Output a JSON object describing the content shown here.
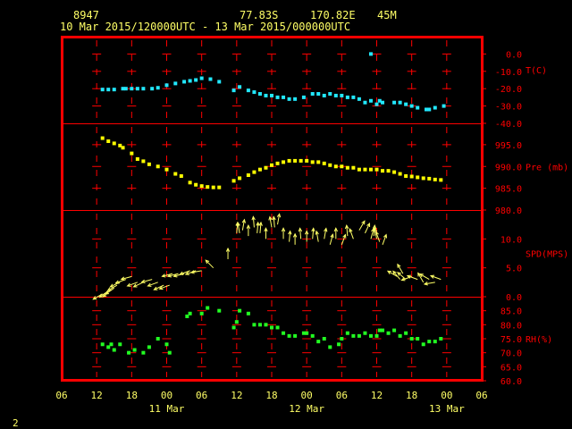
{
  "header": {
    "station_id": "8947",
    "latitude": "77.83S",
    "longitude": "170.82E",
    "elevation": "45M",
    "time_range": "10 Mar 2015/120000UTC - 13 Mar 2015/000000UTC"
  },
  "footer": {
    "page_number": "2"
  },
  "colors": {
    "background": "#000000",
    "frame": "#ff0000",
    "divider": "#ff0000",
    "tick": "#ff0000",
    "text": "#ffff66",
    "axis_text": "#ff0000",
    "temperature": "#22e8ff",
    "pressure": "#ffff00",
    "wind": "#ffff66",
    "humidity": "#22ff22"
  },
  "chart_data": {
    "type": "scatter",
    "x_axis": {
      "unit": "hours since 10 Mar 2015 06 UTC",
      "range_hours": [
        0,
        72
      ],
      "tick_labels": [
        "06",
        "12",
        "18",
        "00",
        "06",
        "12",
        "18",
        "00",
        "06",
        "12",
        "18",
        "00",
        "06"
      ],
      "tick_hours": [
        0,
        6,
        12,
        18,
        24,
        30,
        36,
        42,
        48,
        54,
        60,
        66,
        72
      ],
      "date_labels": [
        {
          "text": "11 Mar",
          "hour": 18
        },
        {
          "text": "12 Mar",
          "hour": 42
        },
        {
          "text": "13 Mar",
          "hour": 66
        }
      ]
    },
    "panels": [
      {
        "key": "temperature",
        "label": "T(C)",
        "tick_labels": [
          "0.0",
          "-10.0",
          "-20.0",
          "-30.0",
          "-40.0"
        ],
        "tick_values": [
          0,
          -10,
          -20,
          -30,
          -40
        ],
        "range": [
          -40,
          10
        ],
        "label_value": -9,
        "series": {
          "x": [
            7,
            8,
            9,
            10.5,
            11,
            12,
            13,
            14,
            15.5,
            16.5,
            18,
            19.5,
            21,
            22,
            23,
            24,
            25.5,
            27,
            29.5,
            30.5,
            32,
            33,
            34,
            35,
            36,
            37,
            38,
            39,
            40,
            41.5,
            43,
            44,
            45,
            46,
            47,
            48,
            49,
            50,
            51,
            52,
            53,
            54,
            54.5,
            55,
            57,
            58,
            59,
            60,
            61,
            62.5,
            63,
            64,
            65.5,
            53
          ],
          "y": [
            -20.5,
            -20.5,
            -20.5,
            -20,
            -20,
            -20,
            -20,
            -20,
            -20,
            -19.5,
            -18,
            -17,
            -16,
            -15.5,
            -15,
            -14,
            -14.5,
            -16,
            -21,
            -19,
            -21,
            -22,
            -23,
            -24,
            -24,
            -25,
            -25,
            -26,
            -26,
            -25,
            -23,
            -23,
            -24,
            -23,
            -24,
            -24,
            -25,
            -25,
            -26,
            -28,
            -27,
            -29,
            -27,
            -28,
            -28,
            -28,
            -29,
            -30,
            -31,
            -32,
            -32,
            -31,
            -30,
            0
          ]
        }
      },
      {
        "key": "pressure",
        "label": "Pre (mb)",
        "tick_labels": [
          "995.0",
          "990.0",
          "985.0",
          "980.0"
        ],
        "tick_values": [
          995,
          990,
          985,
          980
        ],
        "range": [
          980,
          999.9
        ],
        "label_value": 990,
        "series": {
          "x": [
            7,
            8,
            9,
            10,
            10.5,
            12,
            13,
            14,
            15,
            16.5,
            18,
            19.5,
            20.5,
            22,
            23,
            24,
            25,
            26,
            27,
            29.5,
            30.5,
            32,
            33,
            34,
            35,
            36,
            37,
            38,
            39,
            40,
            41,
            42,
            43,
            44,
            45,
            46,
            47,
            48,
            49,
            50,
            51,
            52,
            53,
            54,
            55,
            56,
            57,
            58,
            59,
            60,
            61,
            62,
            63,
            64,
            65
          ],
          "y": [
            996.5,
            995.8,
            995.3,
            994.8,
            994.3,
            993,
            991.7,
            991.2,
            990.5,
            990,
            989.3,
            988.3,
            987.8,
            986.3,
            985.8,
            985.5,
            985.3,
            985.2,
            985.2,
            986.7,
            987.3,
            988,
            988.7,
            989.3,
            989.7,
            990.3,
            990.7,
            991,
            991.3,
            991.3,
            991.3,
            991.3,
            991,
            991,
            990.7,
            990.3,
            990,
            990,
            989.7,
            989.7,
            989.3,
            989.3,
            989.3,
            989.3,
            989,
            989,
            988.7,
            988.3,
            987.8,
            987.7,
            987.5,
            987.3,
            987.2,
            987,
            986.9
          ]
        }
      },
      {
        "key": "wind",
        "label": "SPD(MPS)",
        "tick_labels": [
          "10.0",
          "5.0",
          "0.0"
        ],
        "tick_values": [
          10,
          5,
          0
        ],
        "range": [
          0,
          15
        ],
        "label_value": 7.5,
        "series": {
          "x": [
            7,
            8,
            8.5,
            9,
            9.5,
            10,
            11,
            12,
            13,
            14,
            15.5,
            16.5,
            17.5,
            18.5,
            19,
            20,
            21,
            22,
            23,
            24,
            26,
            28.5,
            30,
            30.5,
            31,
            32,
            33,
            33.5,
            34,
            35,
            36,
            36.5,
            37,
            38,
            39,
            40,
            41,
            42,
            43,
            44,
            45,
            46,
            47,
            48,
            49,
            50,
            51,
            52,
            53,
            53.5,
            54,
            55,
            57.5,
            58,
            58.5,
            59,
            60,
            61,
            62,
            63,
            64,
            65,
            54.5
          ],
          "y": [
            0.5,
            1,
            1.2,
            1.5,
            2,
            2.5,
            3,
            3.5,
            2.5,
            2.5,
            3,
            2.5,
            2,
            2,
            4,
            4,
            4,
            4.5,
            4.5,
            4.5,
            5,
            6.5,
            11,
            11,
            11.5,
            10.5,
            12,
            11,
            11,
            10,
            12,
            12,
            12.5,
            10,
            9.5,
            9,
            10,
            9.5,
            10,
            9.5,
            10,
            9,
            10,
            9,
            10.5,
            10,
            11.5,
            11,
            10,
            10.5,
            10,
            9,
            3.5,
            3,
            4,
            3,
            3.5,
            3,
            2.5,
            3,
            2.5,
            3,
            9.5
          ],
          "direction_deg": [
            240,
            235,
            230,
            235,
            240,
            245,
            250,
            255,
            250,
            245,
            255,
            250,
            245,
            250,
            255,
            255,
            255,
            250,
            250,
            260,
            315,
            0,
            5,
            350,
            10,
            0,
            355,
            5,
            5,
            0,
            350,
            355,
            10,
            0,
            5,
            0,
            355,
            0,
            5,
            350,
            10,
            15,
            0,
            20,
            355,
            340,
            30,
            25,
            15,
            5,
            350,
            20,
            300,
            320,
            330,
            310,
            250,
            290,
            330,
            300,
            260,
            290,
            340
          ]
        }
      },
      {
        "key": "humidity",
        "label": "RH(%)",
        "tick_labels": [
          "85.0",
          "80.0",
          "75.0",
          "70.0",
          "65.0",
          "60.0"
        ],
        "tick_values": [
          85,
          80,
          75,
          70,
          65,
          60
        ],
        "range": [
          60,
          90
        ],
        "label_value": 75,
        "series": {
          "x": [
            7,
            8,
            8.5,
            9,
            10,
            11.5,
            12.5,
            14,
            15,
            16.5,
            18,
            18.5,
            21.5,
            22,
            24,
            25,
            27,
            29.5,
            30,
            30.5,
            32,
            33,
            34,
            35,
            36,
            37,
            38,
            39,
            40,
            41.5,
            42,
            43,
            44,
            45,
            46,
            47.5,
            48,
            49,
            50,
            51,
            52,
            53,
            54,
            54.5,
            55,
            56,
            57,
            58,
            59,
            60,
            61,
            62,
            63,
            64,
            65
          ],
          "y": [
            73,
            72,
            73,
            71,
            73,
            70,
            71,
            70,
            72,
            75,
            73,
            70,
            83,
            84,
            84,
            86,
            85,
            79,
            81,
            85,
            84,
            80,
            80,
            80,
            79,
            79,
            77,
            76,
            76,
            77,
            77,
            76,
            74,
            75,
            72,
            73,
            75,
            77,
            76,
            76,
            77,
            76,
            76,
            78,
            78,
            77,
            78,
            76,
            77,
            75,
            75,
            73,
            74,
            74,
            75
          ]
        }
      }
    ]
  }
}
